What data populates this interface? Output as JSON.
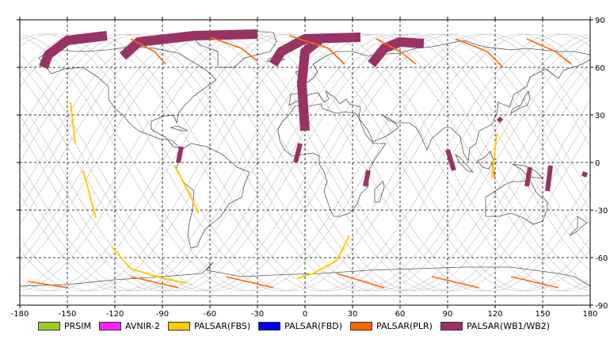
{
  "map": {
    "lon_range": [
      -180,
      180
    ],
    "lat_range": [
      -90,
      90
    ],
    "lon_ticks": [
      -180,
      -150,
      -120,
      -90,
      -60,
      -30,
      0,
      30,
      60,
      90,
      120,
      150,
      180
    ],
    "lat_ticks": [
      90,
      60,
      30,
      0,
      -30,
      -60,
      -90
    ],
    "lon_tick_labels": [
      "-180",
      "-150",
      "-120",
      "-90",
      "-60",
      "-30",
      "0",
      "30",
      "60",
      "90",
      "120",
      "150",
      "180"
    ],
    "lat_tick_labels": [
      "90",
      "60",
      "30",
      "0",
      "-30",
      "-60",
      "-90"
    ],
    "grid": "dashed",
    "background": "#ffffff",
    "coast_color": "#555555",
    "track_color": "#c8c8c8"
  },
  "legend": {
    "placement": "bottom",
    "items": [
      {
        "label": "PRSIM",
        "color": "#99cc22"
      },
      {
        "label": "AVNIR-2",
        "color": "#ff22ff"
      },
      {
        "label": "PALSAR(FBS)",
        "color": "#ffcc00"
      },
      {
        "label": "PALSAR(FBD)",
        "color": "#0000ee"
      },
      {
        "label": "PALSAR(PLR)",
        "color": "#ff6600"
      },
      {
        "label": "PALSAR(WB1/WB2)",
        "color": "#993366"
      }
    ]
  },
  "observations": {
    "wb_swaths": [
      {
        "color": "#993366",
        "width_deg": 6,
        "path": [
          [
            -125,
            80
          ],
          [
            -150,
            77
          ],
          [
            -162,
            68
          ],
          [
            -165,
            60
          ]
        ]
      },
      {
        "color": "#993366",
        "width_deg": 6,
        "path": [
          [
            -30,
            81
          ],
          [
            -70,
            80
          ],
          [
            -105,
            76
          ],
          [
            -115,
            67
          ]
        ]
      },
      {
        "color": "#993366",
        "width_deg": 6,
        "path": [
          [
            35,
            79
          ],
          [
            0,
            78
          ],
          [
            -15,
            70
          ],
          [
            -20,
            62
          ]
        ]
      },
      {
        "color": "#993366",
        "width_deg": 6,
        "path": [
          [
            10,
            78
          ],
          [
            0,
            70
          ],
          [
            -2,
            50
          ],
          [
            0,
            20
          ]
        ]
      },
      {
        "color": "#993366",
        "width_deg": 6,
        "path": [
          [
            75,
            75
          ],
          [
            60,
            76
          ],
          [
            50,
            72
          ],
          [
            42,
            62
          ]
        ]
      },
      {
        "color": "#993366",
        "width_deg": 3,
        "path": [
          [
            -78,
            10
          ],
          [
            -80,
            0
          ]
        ]
      },
      {
        "color": "#993366",
        "width_deg": 3,
        "path": [
          [
            -3,
            12
          ],
          [
            -6,
            0
          ]
        ]
      },
      {
        "color": "#993366",
        "width_deg": 3,
        "path": [
          [
            90,
            8
          ],
          [
            94,
            -5
          ]
        ]
      },
      {
        "color": "#993366",
        "width_deg": 3,
        "path": [
          [
            40,
            -5
          ],
          [
            38,
            -15
          ]
        ]
      },
      {
        "color": "#993366",
        "width_deg": 3,
        "path": [
          [
            142,
            -3
          ],
          [
            140,
            -15
          ]
        ]
      },
      {
        "color": "#993366",
        "width_deg": 3,
        "path": [
          [
            155,
            -2
          ],
          [
            153,
            -18
          ]
        ]
      },
      {
        "color": "#993366",
        "width_deg": 3,
        "path": [
          [
            175,
            -7
          ],
          [
            178,
            -8
          ]
        ]
      },
      {
        "color": "#993366",
        "width_deg": 3,
        "path": [
          [
            122,
            28
          ],
          [
            124,
            26
          ]
        ]
      }
    ],
    "plr_tracks": [
      {
        "color": "#ff6600",
        "path": [
          [
            -110,
            78
          ],
          [
            -95,
            70
          ],
          [
            -88,
            62
          ]
        ]
      },
      {
        "color": "#ff6600",
        "path": [
          [
            -60,
            79
          ],
          [
            -40,
            72
          ],
          [
            -30,
            64
          ]
        ]
      },
      {
        "color": "#ff6600",
        "path": [
          [
            -10,
            80
          ],
          [
            15,
            72
          ],
          [
            25,
            62
          ]
        ]
      },
      {
        "color": "#ff6600",
        "path": [
          [
            45,
            78
          ],
          [
            60,
            70
          ],
          [
            70,
            62
          ]
        ]
      },
      {
        "color": "#ff6600",
        "path": [
          [
            95,
            78
          ],
          [
            115,
            70
          ],
          [
            125,
            60
          ]
        ]
      },
      {
        "color": "#ff6600",
        "path": [
          [
            140,
            78
          ],
          [
            158,
            70
          ],
          [
            168,
            62
          ]
        ]
      },
      {
        "color": "#ff6600",
        "path": [
          [
            -175,
            -75
          ],
          [
            -150,
            -79
          ]
        ]
      },
      {
        "color": "#ff6600",
        "path": [
          [
            -110,
            -72
          ],
          [
            -80,
            -79
          ]
        ]
      },
      {
        "color": "#ff6600",
        "path": [
          [
            -50,
            -72
          ],
          [
            -20,
            -79
          ]
        ]
      },
      {
        "color": "#ff6600",
        "path": [
          [
            20,
            -70
          ],
          [
            50,
            -79
          ]
        ]
      },
      {
        "color": "#ff6600",
        "path": [
          [
            80,
            -72
          ],
          [
            110,
            -79
          ]
        ]
      },
      {
        "color": "#ff6600",
        "path": [
          [
            130,
            -72
          ],
          [
            160,
            -79
          ]
        ]
      },
      {
        "color": "#ff6600",
        "path": [
          [
            118,
            0
          ],
          [
            120,
            -10
          ]
        ]
      }
    ],
    "fbs_tracks": [
      {
        "color": "#ffcc00",
        "path": [
          [
            -148,
            38
          ],
          [
            -145,
            12
          ]
        ]
      },
      {
        "color": "#ffcc00",
        "path": [
          [
            -140,
            -5
          ],
          [
            -132,
            -35
          ]
        ]
      },
      {
        "color": "#ffcc00",
        "path": [
          [
            -82,
            -2
          ],
          [
            -67,
            -32
          ]
        ]
      },
      {
        "color": "#ffcc00",
        "path": [
          [
            -122,
            -53
          ],
          [
            -110,
            -67
          ],
          [
            -90,
            -73
          ],
          [
            -75,
            -76
          ]
        ]
      },
      {
        "color": "#ffcc00",
        "path": [
          [
            28,
            -46
          ],
          [
            20,
            -62
          ],
          [
            5,
            -70
          ],
          [
            -5,
            -73
          ]
        ]
      },
      {
        "color": "#ffcc00",
        "path": [
          [
            118,
            -10
          ],
          [
            121,
            18
          ]
        ]
      }
    ]
  }
}
